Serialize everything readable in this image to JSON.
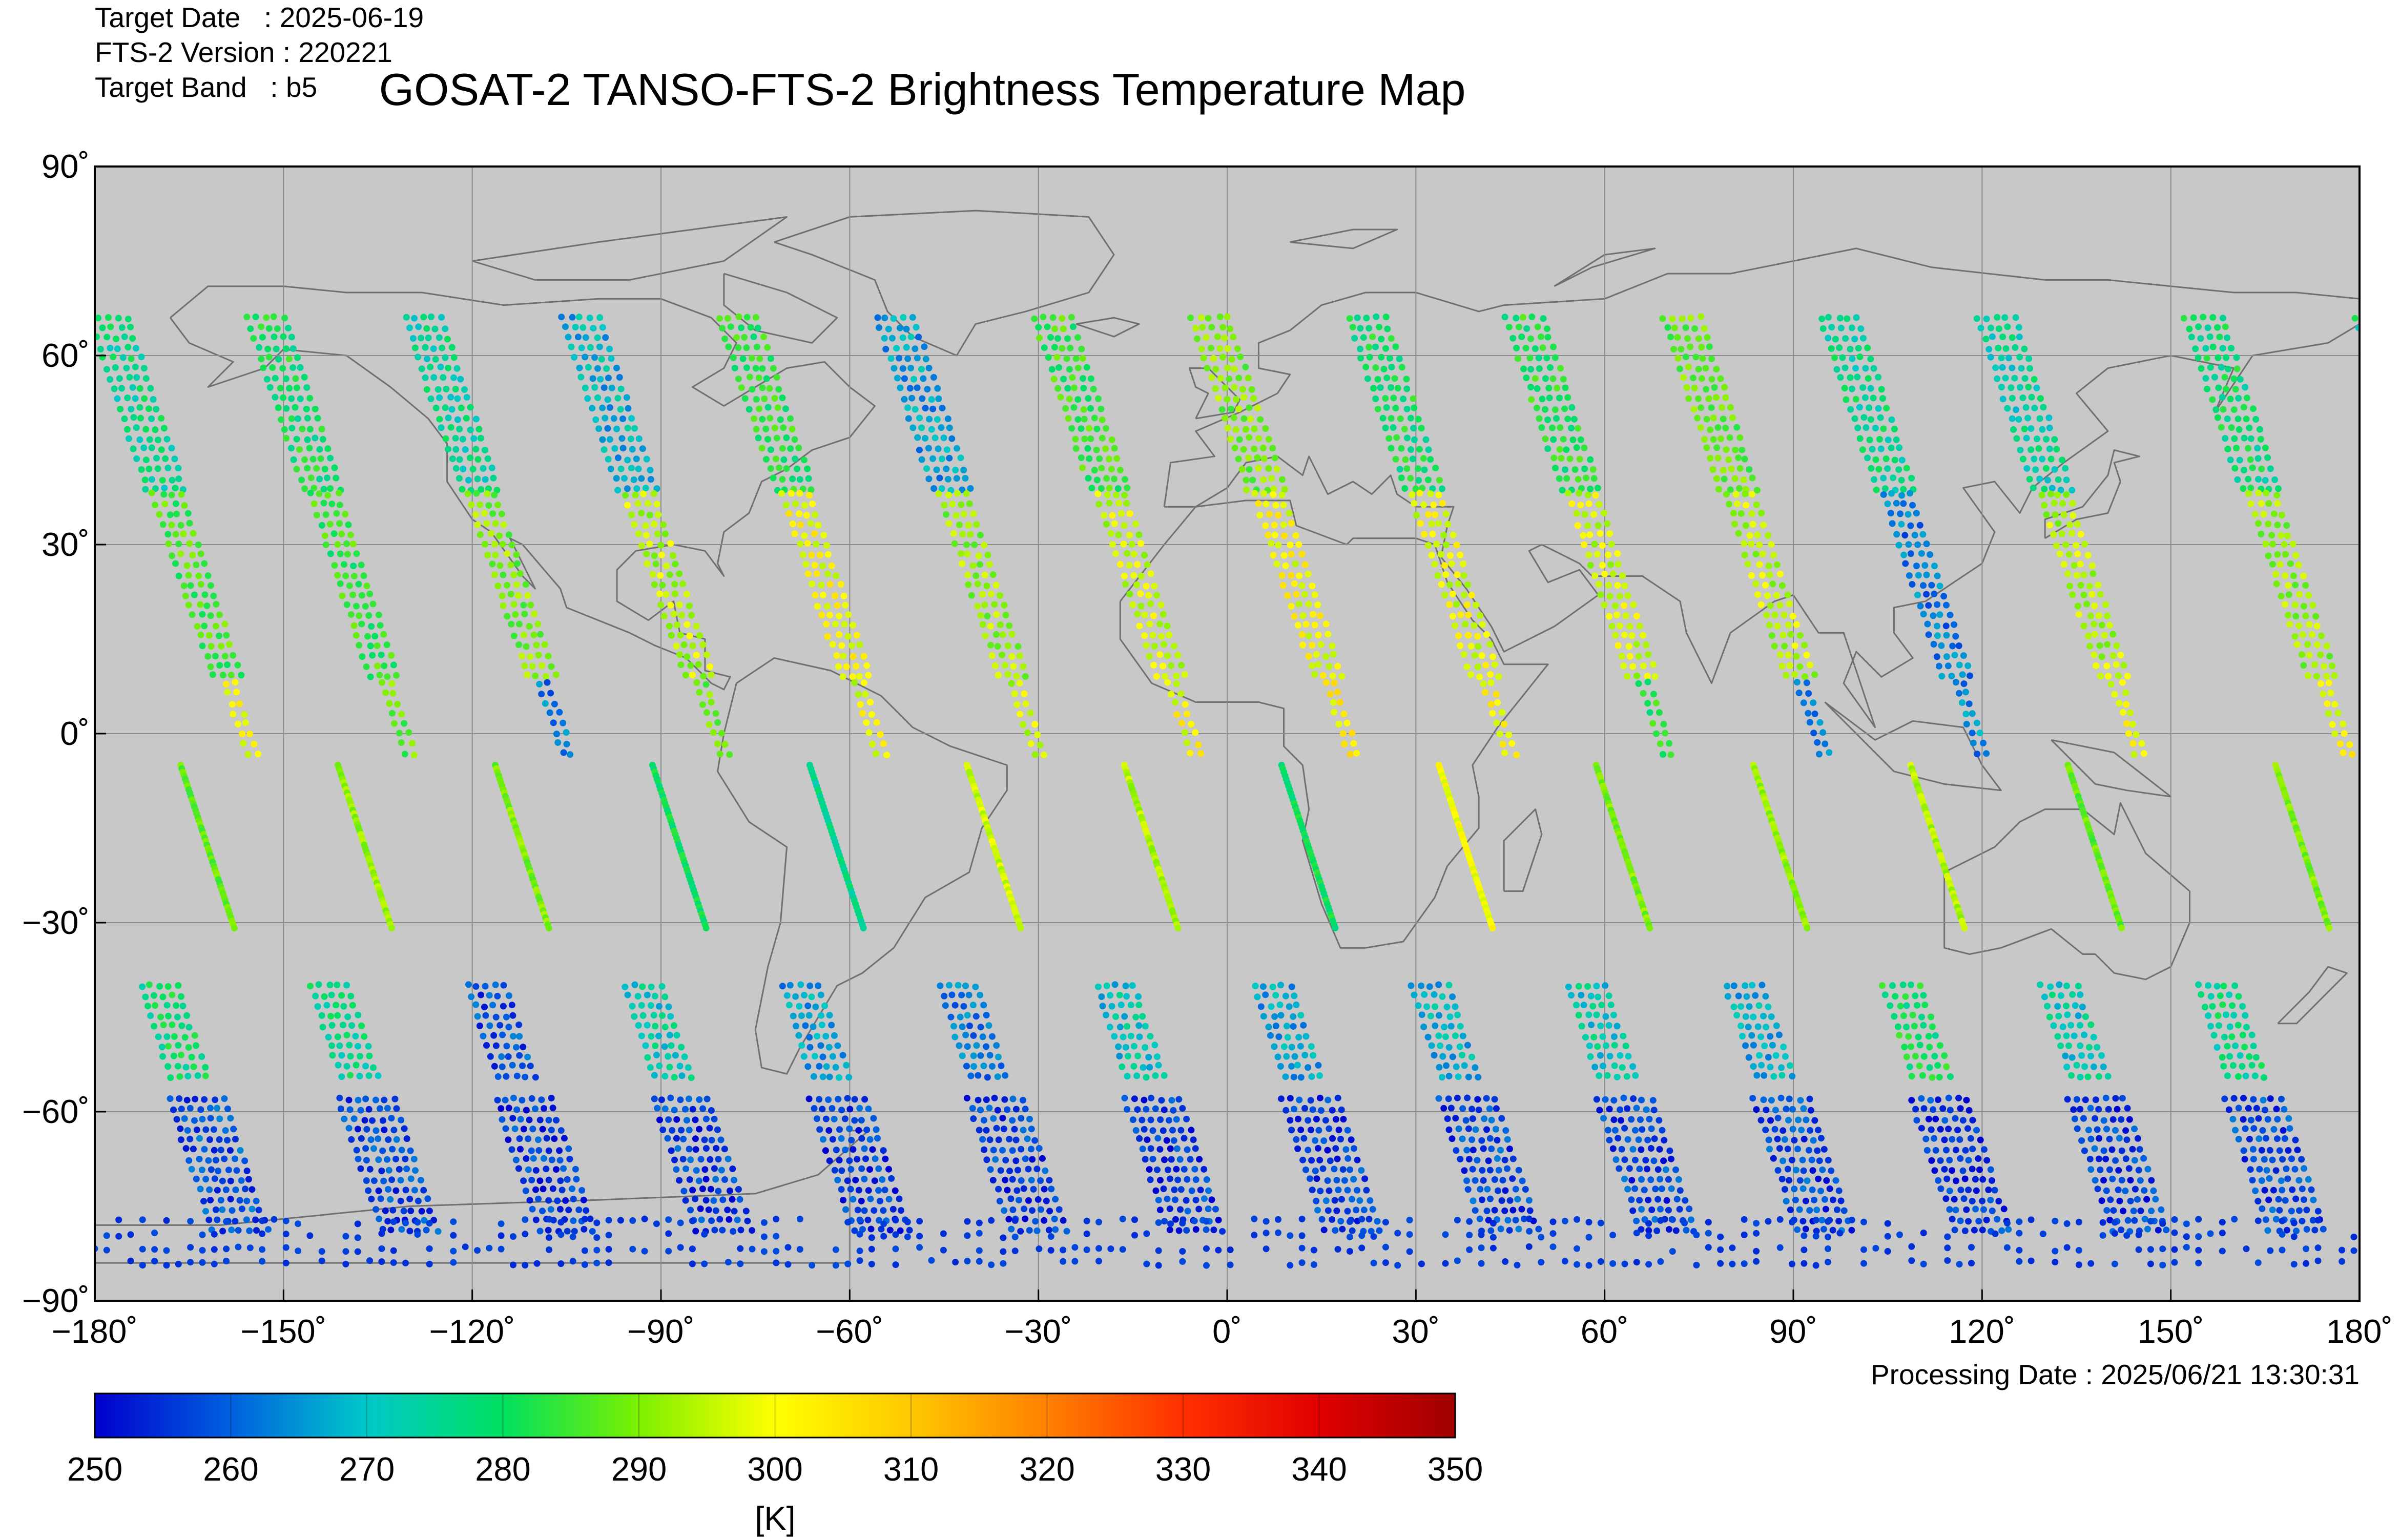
{
  "header": {
    "meta_lines": [
      "Target Date   : 2025-06-19",
      "FTS-2 Version : 220221",
      "Target Band   : b5"
    ],
    "title": "GOSAT-2 TANSO-FTS-2 Brightness Temperature Map",
    "processing_date": "Processing Date : 2025/06/21 13:30:31"
  },
  "colors": {
    "ocean_background": "#c8c8c8",
    "coastline": "#707070",
    "grid": "#8c8c8c"
  },
  "chart_data": {
    "type": "scatter",
    "map_projection": "equirectangular",
    "xlim": [
      -180,
      180
    ],
    "ylim": [
      -90,
      90
    ],
    "x_ticks": [
      -180,
      -150,
      -120,
      -90,
      -60,
      -30,
      0,
      30,
      60,
      90,
      120,
      150,
      180
    ],
    "x_tick_labels": [
      "−180˚",
      "−150˚",
      "−120˚",
      "−90˚",
      "−60˚",
      "−30˚",
      "0˚",
      "30˚",
      "60˚",
      "90˚",
      "120˚",
      "150˚",
      "180˚"
    ],
    "y_ticks": [
      90,
      60,
      30,
      0,
      -30,
      -60,
      -90
    ],
    "y_tick_labels": [
      "90˚",
      "60˚",
      "30˚",
      "0˚",
      "−30˚",
      "−60˚",
      "−90˚"
    ],
    "grid": true,
    "colorbar": {
      "min": 250,
      "max": 350,
      "ticks": [
        250,
        260,
        270,
        280,
        290,
        300,
        310,
        320,
        330,
        340,
        350
      ],
      "tick_labels": [
        "250",
        "260",
        "270",
        "280",
        "290",
        "300",
        "310",
        "320",
        "330",
        "340",
        "350"
      ],
      "unit_label": "[K]",
      "colormap": [
        "#0000cd",
        "#0060e0",
        "#00c8c8",
        "#00e060",
        "#7cf000",
        "#ffff00",
        "#ffc800",
        "#ff8000",
        "#ff3000",
        "#e00000",
        "#a00000"
      ]
    },
    "swaths": [
      {
        "lon_equator": 177,
        "band_temps": {
          "north": 278,
          "north_mid": 292,
          "tropics": 300,
          "south_tropics": 290,
          "south_mid": 278,
          "polar": 258
        }
      },
      {
        "lon_equator": -156,
        "band_temps": {
          "north": 276,
          "north_mid": 286,
          "tropics": 299,
          "south_tropics": 288,
          "south_mid": 276,
          "polar": 257
        }
      },
      {
        "lon_equator": -131,
        "band_temps": {
          "north": 280,
          "north_mid": 284,
          "tropics": 288,
          "south_tropics": 292,
          "south_mid": 258,
          "polar": 256
        }
      },
      {
        "lon_equator": -106,
        "band_temps": {
          "north": 275,
          "north_mid": 290,
          "tropics": 262,
          "south_tropics": 290,
          "south_mid": 272,
          "polar": 256
        }
      },
      {
        "lon_equator": -81,
        "band_temps": {
          "north": 268,
          "north_mid": 294,
          "tropics": 290,
          "south_tropics": 280,
          "south_mid": 266,
          "polar": 256
        }
      },
      {
        "lon_equator": -56,
        "band_temps": {
          "north": 282,
          "north_mid": 300,
          "tropics": 298,
          "south_tropics": 276,
          "south_mid": 262,
          "polar": 256
        }
      },
      {
        "lon_equator": -31,
        "band_temps": {
          "north": 266,
          "north_mid": 292,
          "tropics": 296,
          "south_tropics": 296,
          "south_mid": 270,
          "polar": 256
        }
      },
      {
        "lon_equator": -6,
        "band_temps": {
          "north": 284,
          "north_mid": 296,
          "tropics": 300,
          "south_tropics": 294,
          "south_mid": 266,
          "polar": 256
        }
      },
      {
        "lon_equator": 19,
        "band_temps": {
          "north": 290,
          "north_mid": 300,
          "tropics": 302,
          "south_tropics": 280,
          "south_mid": 268,
          "polar": 257
        }
      },
      {
        "lon_equator": 44,
        "band_temps": {
          "north": 280,
          "north_mid": 298,
          "tropics": 300,
          "south_tropics": 300,
          "south_mid": 272,
          "polar": 257
        }
      },
      {
        "lon_equator": 69,
        "band_temps": {
          "north": 282,
          "north_mid": 296,
          "tropics": 282,
          "south_tropics": 290,
          "south_mid": 268,
          "polar": 257
        }
      },
      {
        "lon_equator": 94,
        "band_temps": {
          "north": 288,
          "north_mid": 294,
          "tropics": 262,
          "south_tropics": 292,
          "south_mid": 280,
          "polar": 256
        }
      },
      {
        "lon_equator": 119,
        "band_temps": {
          "north": 276,
          "north_mid": 262,
          "tropics": 264,
          "south_tropics": 294,
          "south_mid": 272,
          "polar": 256
        }
      },
      {
        "lon_equator": 144,
        "band_temps": {
          "north": 274,
          "north_mid": 294,
          "tropics": 298,
          "south_tropics": 288,
          "south_mid": 276,
          "polar": 257
        }
      }
    ],
    "polar_high_cold_band": {
      "lat_range": [
        -84,
        -62
      ],
      "temperature": 256
    },
    "equator_glint_strips_temperature_range": [
      255,
      300
    ]
  }
}
